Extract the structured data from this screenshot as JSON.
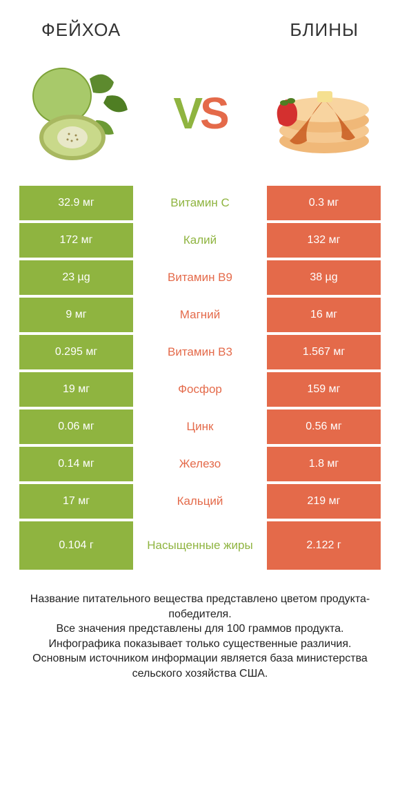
{
  "header": {
    "left": "ФЕЙХОА",
    "right": "БЛИНЫ"
  },
  "vs": {
    "v": "V",
    "s": "S"
  },
  "colors": {
    "left": "#8fb440",
    "right": "#e46a4a",
    "mid_left": "#8fb440",
    "mid_right": "#e46a4a"
  },
  "rows": [
    {
      "nutrient": "Витамин C",
      "left": "32.9 мг",
      "right": "0.3 мг",
      "winner": "left"
    },
    {
      "nutrient": "Калий",
      "left": "172 мг",
      "right": "132 мг",
      "winner": "left"
    },
    {
      "nutrient": "Витамин B9",
      "left": "23 µg",
      "right": "38 µg",
      "winner": "right"
    },
    {
      "nutrient": "Магний",
      "left": "9 мг",
      "right": "16 мг",
      "winner": "right"
    },
    {
      "nutrient": "Витамин B3",
      "left": "0.295 мг",
      "right": "1.567 мг",
      "winner": "right"
    },
    {
      "nutrient": "Фосфор",
      "left": "19 мг",
      "right": "159 мг",
      "winner": "right"
    },
    {
      "nutrient": "Цинк",
      "left": "0.06 мг",
      "right": "0.56 мг",
      "winner": "right"
    },
    {
      "nutrient": "Железо",
      "left": "0.14 мг",
      "right": "1.8 мг",
      "winner": "right"
    },
    {
      "nutrient": "Кальций",
      "left": "17 мг",
      "right": "219 мг",
      "winner": "right"
    },
    {
      "nutrient": "Насыщенные жиры",
      "left": "0.104 г",
      "right": "2.122 г",
      "winner": "left",
      "tall": true
    }
  ],
  "footer": {
    "l1": "Название питательного вещества представлено цветом продукта-победителя.",
    "l2": "Все значения представлены для 100 граммов продукта.",
    "l3": "Инфографика показывает только существенные различия.",
    "l4": "Основным источником информации является база министерства сельского хозяйства США."
  }
}
